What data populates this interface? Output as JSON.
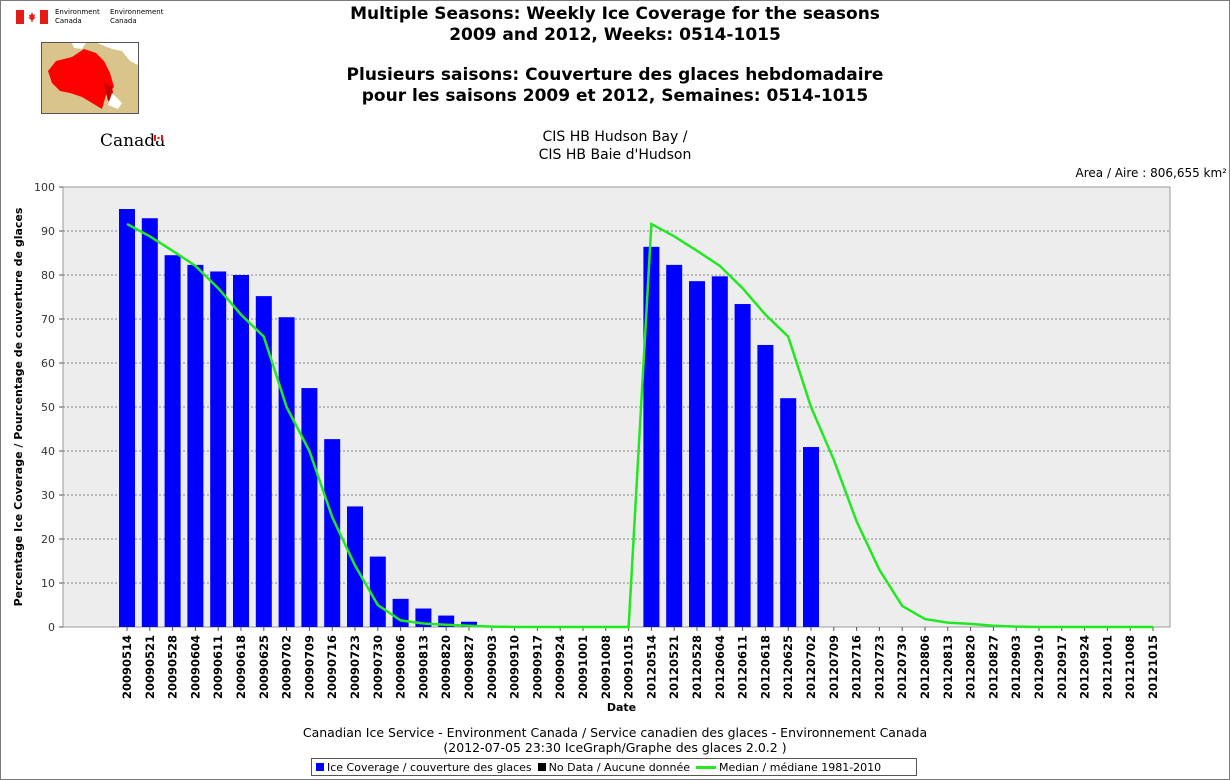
{
  "header": {
    "dept_en_1": "Environment",
    "dept_fr_1": "Environnement",
    "dept_en_2": "Canada",
    "dept_fr_2": "Canada",
    "wordmark": "Canada",
    "title_en_1": "Multiple Seasons: Weekly Ice Coverage for the seasons",
    "title_en_2": "2009 and 2012, Weeks: 0514-1015",
    "title_fr_1": "Plusieurs saisons: Couverture des glaces hebdomadaire",
    "title_fr_2": "pour les saisons 2009 et 2012, Semaines: 0514-1015",
    "region_en": "CIS HB Hudson Bay /",
    "region_fr": "CIS HB Baie d'Hudson",
    "area": "Area / Aire : 806,655 km²"
  },
  "footer": {
    "line1": "Canadian Ice Service - Environment Canada / Service canadien des glaces - Environnement Canada",
    "line2": "(2012-07-05 23:30 IceGraph/Graphe des glaces 2.0.2 )"
  },
  "legend": {
    "coverage": "Ice Coverage / couverture des glaces",
    "nodata": "No Data / Aucune donnée",
    "median": "Median / médiane 1981-2010"
  },
  "colors": {
    "bar": "#0000ff",
    "median": "#22e822",
    "nodata": "#000000",
    "plot_bg": "#ededed"
  },
  "chart_data": {
    "type": "bar",
    "xlabel": "Date",
    "ylabel": "Percentage Ice Coverage / Pourcentage de couverture de glaces",
    "ylim": [
      0,
      100
    ],
    "yticks": [
      0,
      10,
      20,
      30,
      40,
      50,
      60,
      70,
      80,
      90,
      100
    ],
    "categories": [
      "20090514",
      "20090521",
      "20090528",
      "20090604",
      "20090611",
      "20090618",
      "20090625",
      "20090702",
      "20090709",
      "20090716",
      "20090723",
      "20090730",
      "20090806",
      "20090813",
      "20090820",
      "20090827",
      "20090903",
      "20090910",
      "20090917",
      "20090924",
      "20091001",
      "20091008",
      "20091015",
      "20120514",
      "20120521",
      "20120528",
      "20120604",
      "20120611",
      "20120618",
      "20120625",
      "20120702",
      "20120709",
      "20120716",
      "20120723",
      "20120730",
      "20120806",
      "20120813",
      "20120820",
      "20120827",
      "20120903",
      "20120910",
      "20120917",
      "20120924",
      "20121001",
      "20121008",
      "20121015"
    ],
    "series": [
      {
        "name": "Ice Coverage / couverture des glaces",
        "type": "bar",
        "values": [
          95.0,
          92.9,
          84.5,
          82.3,
          80.8,
          80.0,
          75.2,
          70.4,
          54.3,
          42.7,
          27.4,
          16.0,
          6.4,
          4.2,
          2.6,
          1.2,
          0,
          0,
          0,
          0,
          0,
          0,
          0,
          86.4,
          82.3,
          78.6,
          79.7,
          73.4,
          64.1,
          52.0,
          40.9,
          null,
          null,
          null,
          null,
          null,
          null,
          null,
          null,
          null,
          null,
          null,
          null,
          null,
          null,
          null
        ]
      },
      {
        "name": "Median / médiane 1981-2010",
        "type": "line",
        "values": [
          91.6,
          88.8,
          85.5,
          82.1,
          77.0,
          71.0,
          66.0,
          50.0,
          40.0,
          25.0,
          14.0,
          5.0,
          1.5,
          0.8,
          0.5,
          0.3,
          0.1,
          0,
          0,
          0,
          0,
          0,
          0,
          91.6,
          88.8,
          85.5,
          82.1,
          77.0,
          71.0,
          66.0,
          50.0,
          38.0,
          24.0,
          13.0,
          4.8,
          1.8,
          1.0,
          0.7,
          0.3,
          0.1,
          0,
          0,
          0,
          0,
          0,
          0
        ]
      }
    ]
  }
}
